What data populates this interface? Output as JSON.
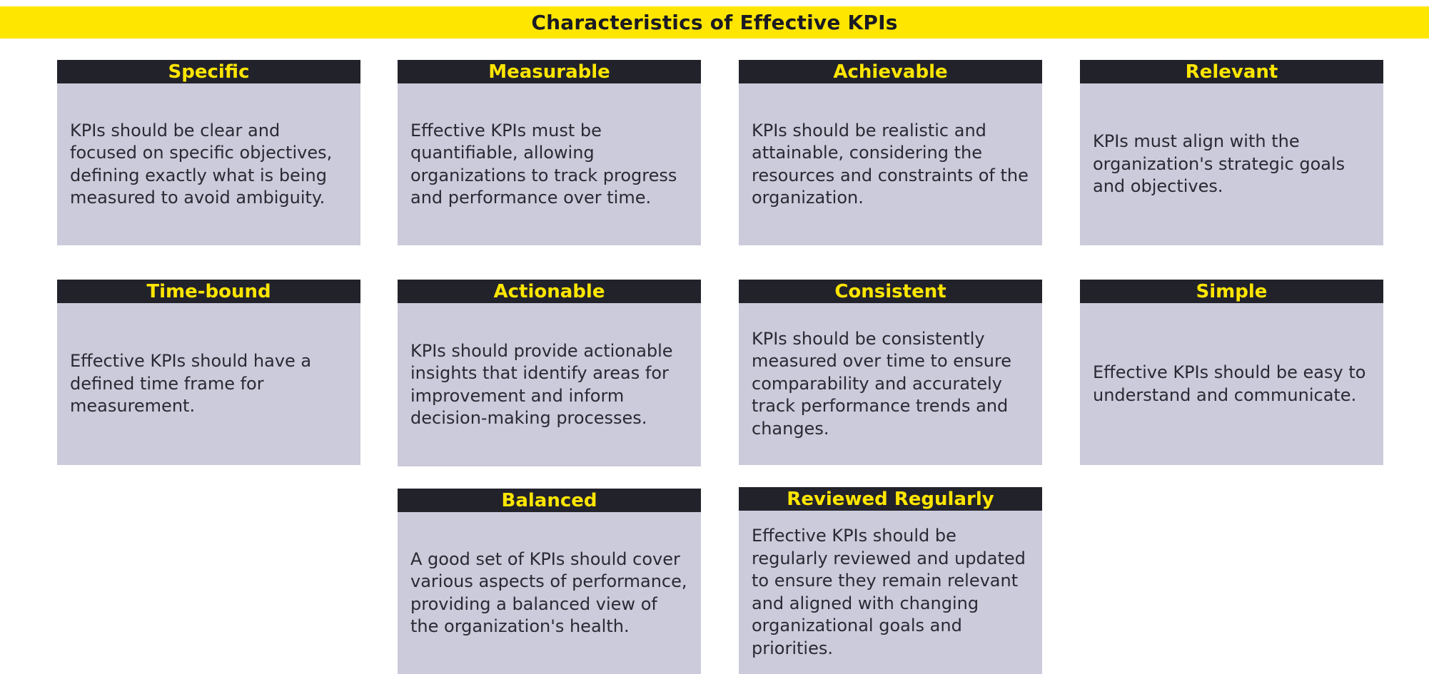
{
  "title": "Characteristics of Effective KPIs",
  "colors": {
    "banner": "#ffe600",
    "header_bg": "#22222b",
    "header_text": "#ffe600",
    "card_bg": "#cbcbdb",
    "body_text": "#2a2a34"
  },
  "cards": [
    {
      "heading": "Specific",
      "text": "KPIs should be clear and focused on specific objectives, defining exactly what is being measured to avoid ambiguity."
    },
    {
      "heading": "Measurable",
      "text": "Effective KPIs must be quantifiable, allowing organizations to track progress and performance over time."
    },
    {
      "heading": "Achievable",
      "text": "KPIs should be realistic and attainable, considering the resources and constraints of the organization."
    },
    {
      "heading": "Relevant",
      "text": "KPIs must align with the organization's strategic goals and objectives."
    },
    {
      "heading": "Time-bound",
      "text": "Effective KPIs should have a defined time frame for measurement."
    },
    {
      "heading": "Actionable",
      "text": "KPIs should provide actionable insights that identify areas for improvement and inform decision-making processes."
    },
    {
      "heading": "Consistent",
      "text": "KPIs should be consistently measured over time to ensure comparability and accurately track performance trends and changes."
    },
    {
      "heading": "Simple",
      "text": "Effective KPIs should be easy to understand and communicate."
    },
    {
      "heading": "Balanced",
      "text": "A good set of KPIs should cover various aspects of performance, providing a balanced view of the organization's health."
    },
    {
      "heading": "Reviewed Regularly",
      "text": "Effective KPIs should be regularly reviewed and updated to ensure they remain relevant and aligned with changing organizational goals and priorities."
    }
  ]
}
